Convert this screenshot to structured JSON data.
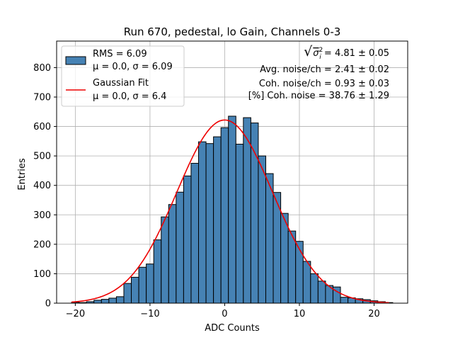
{
  "chart_data": {
    "type": "bar",
    "title": "Run 670, pedestal, lo Gain, Channels 0-3",
    "xlabel": "ADC Counts",
    "ylabel": "Entries",
    "xlim": [
      -22.5,
      24.5
    ],
    "ylim": [
      0,
      890
    ],
    "xticks": [
      -20,
      -10,
      0,
      10,
      20
    ],
    "xtick_labels": [
      "−20",
      "−10",
      "0",
      "10",
      "20"
    ],
    "yticks": [
      0,
      100,
      200,
      300,
      400,
      500,
      600,
      700,
      800
    ],
    "grid": true,
    "bar_color": "#4682b4",
    "fit_color": "#ee0000",
    "bin_edges": [
      -20.5,
      -19.5,
      -18.5,
      -17.5,
      -16.5,
      -15.5,
      -14.5,
      -13.5,
      -12.5,
      -11.5,
      -10.5,
      -9.5,
      -8.5,
      -7.5,
      -6.5,
      -5.5,
      -4.5,
      -3.5,
      -2.5,
      -1.5,
      -0.5,
      0.5,
      1.5,
      2.5,
      3.5,
      4.5,
      5.5,
      6.5,
      7.5,
      8.5,
      9.5,
      10.5,
      11.5,
      12.5,
      13.5,
      14.5,
      15.5,
      16.5,
      17.5,
      18.5,
      19.5,
      20.5,
      21.5,
      22.5
    ],
    "counts": [
      3,
      2,
      5,
      10,
      13,
      17,
      22,
      67,
      88,
      122,
      133,
      215,
      293,
      335,
      377,
      432,
      475,
      548,
      542,
      565,
      596,
      635,
      540,
      630,
      612,
      500,
      440,
      376,
      305,
      245,
      210,
      142,
      100,
      75,
      60,
      55,
      20,
      18,
      15,
      12,
      8,
      5,
      2
    ],
    "series": [
      {
        "name": "RMS = 6.09",
        "sublabel": "μ = 0.0, σ = 6.09",
        "kind": "histogram"
      },
      {
        "name": "Gaussian Fit",
        "sublabel": "μ = 0.0, σ = 6.4",
        "kind": "curve",
        "mu": 0.0,
        "sigma": 6.4,
        "amplitude": 622,
        "x_range": [
          -20.5,
          22
        ]
      }
    ],
    "legend_position": "upper-left",
    "annotations": [
      {
        "prefix": "√",
        "sym": "σ",
        "sup": "2",
        "sub": "i",
        "value": " = 4.81 ± 0.05"
      },
      {
        "text": "Avg. noise/ch = 2.41 ± 0.02"
      },
      {
        "text": "Coh. noise/ch = 0.93 ± 0.03"
      },
      {
        "text": "[%] Coh. noise = 38.76 ± 1.29"
      }
    ]
  }
}
